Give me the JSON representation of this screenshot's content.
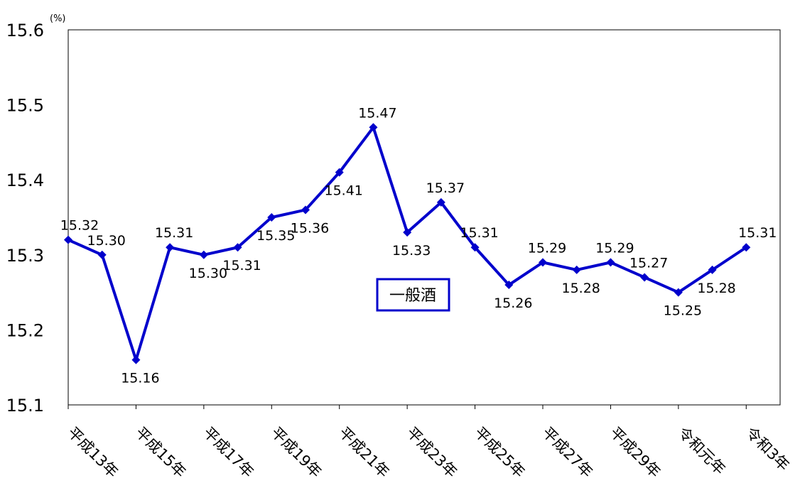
{
  "chart_data": {
    "type": "line",
    "unit_label": "(%)",
    "ylim": [
      15.1,
      15.6
    ],
    "y_ticks": [
      "15.1",
      "15.2",
      "15.3",
      "15.4",
      "15.5",
      "15.6"
    ],
    "x_tick_labels": [
      "平成13年",
      "平成15年",
      "平成17年",
      "平成19年",
      "平成21年",
      "平成23年",
      "平成25年",
      "平成27年",
      "平成29年",
      "令和元年",
      "令和3年"
    ],
    "grid": false,
    "legend_position": "center",
    "series": [
      {
        "name": "一般酒",
        "color": "#0000CC",
        "values": [
          15.32,
          15.3,
          15.16,
          15.31,
          15.3,
          15.31,
          15.35,
          15.36,
          15.41,
          15.47,
          15.33,
          15.37,
          15.31,
          15.26,
          15.29,
          15.28,
          15.29,
          15.27,
          15.25,
          15.28,
          15.31
        ],
        "labels": [
          "15.32",
          "15.30",
          "15.16",
          "15.31",
          "15.30",
          "15.31",
          "15.35",
          "15.36",
          "15.41",
          "15.47",
          "15.33",
          "15.37",
          "15.31",
          "15.26",
          "15.29",
          "15.28",
          "15.29",
          "15.27",
          "15.25",
          "15.28",
          "15.31"
        ]
      }
    ]
  }
}
